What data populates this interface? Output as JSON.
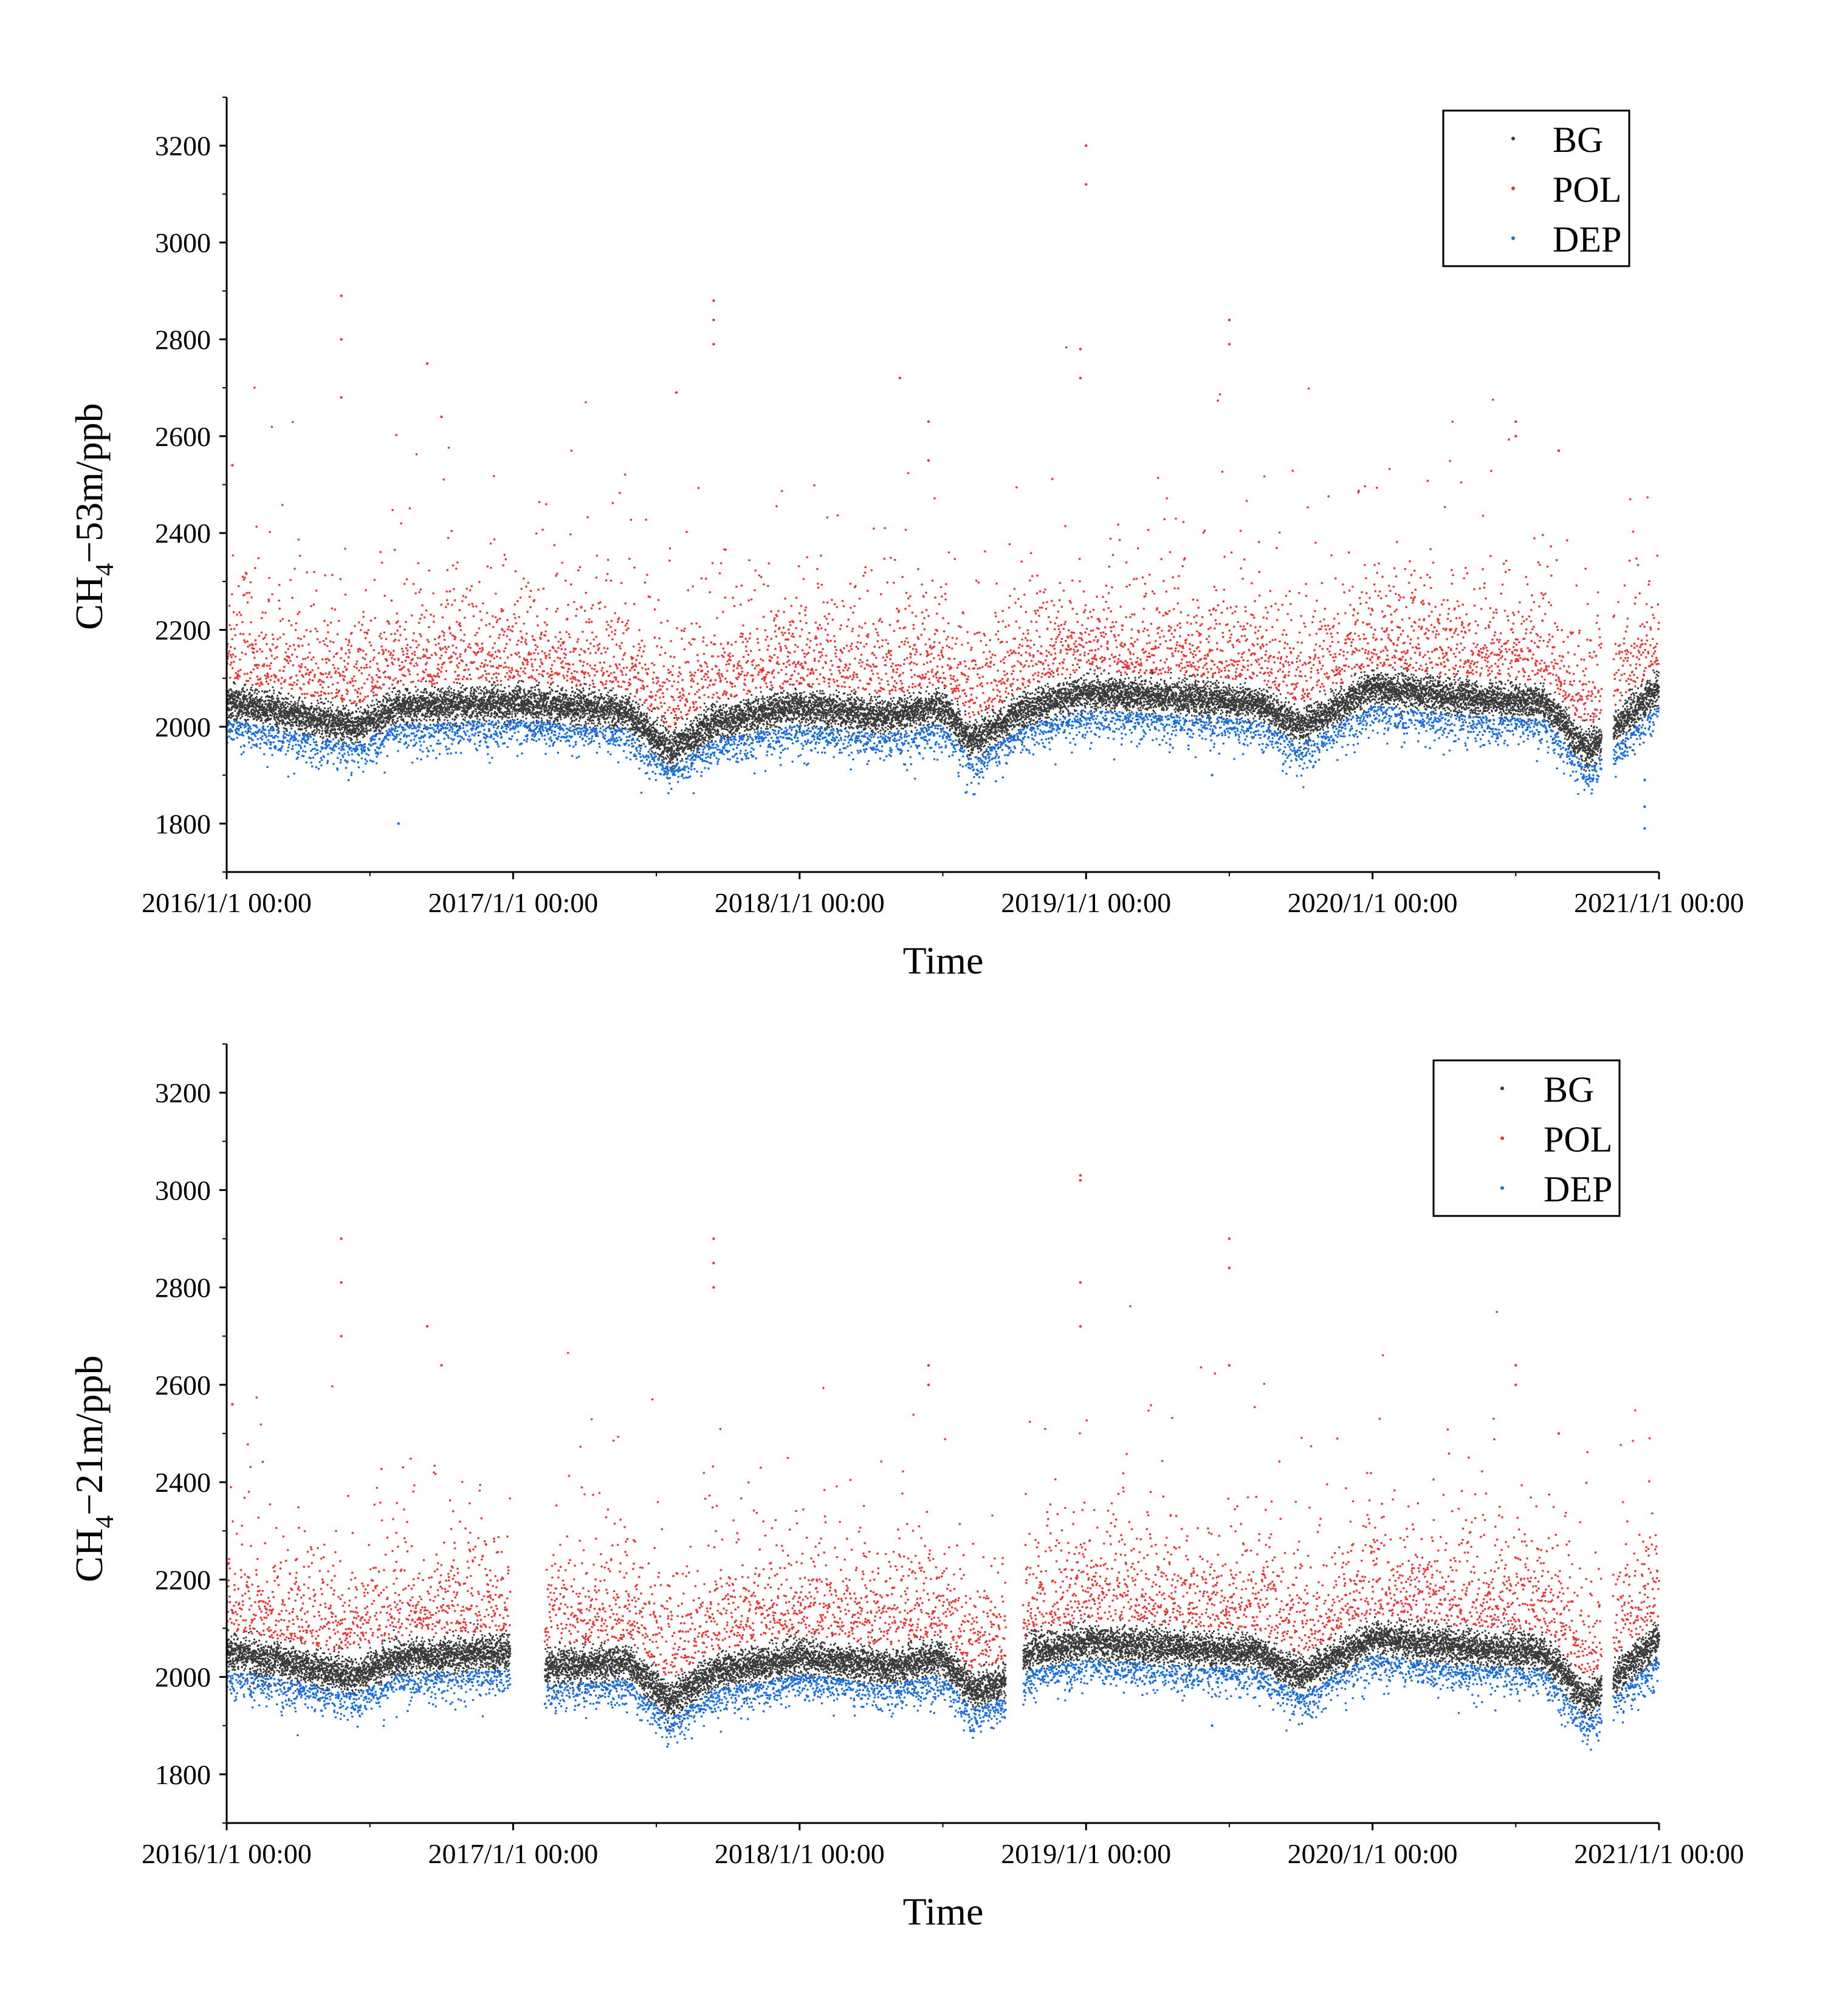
{
  "colors": {
    "BG": "#3a3a3a",
    "POL": "#ee3333",
    "DEP": "#1a6fe0",
    "axis": "#000000"
  },
  "chart_data": [
    {
      "type": "scatter",
      "title": "",
      "xlabel": "Time",
      "ylabel_main": "CH",
      "ylabel_sub": "4",
      "ylabel_rest": "−53m/ppb",
      "xlim": [
        2016.0,
        2021.0
      ],
      "ylim": [
        1700,
        3300
      ],
      "xticks": [
        2016,
        2017,
        2018,
        2019,
        2020,
        2021
      ],
      "xtick_labels": [
        "2016/1/1 00:00",
        "2017/1/1 00:00",
        "2018/1/1 00:00",
        "2019/1/1 00:00",
        "2020/1/1 00:00",
        "2021/1/1 00:00"
      ],
      "yticks": [
        1800,
        2000,
        2200,
        2400,
        2600,
        2800,
        3000,
        3200
      ],
      "ytick_labels": [
        "1800",
        "2000",
        "2200",
        "2400",
        "2600",
        "2800",
        "3000",
        "3200"
      ],
      "legend": [
        "BG",
        "POL",
        "DEP"
      ],
      "legend_position": "top-right",
      "series_summary": {
        "BG_baseline_points": [
          [
            2016.0,
            2050
          ],
          [
            2016.2,
            2030
          ],
          [
            2016.45,
            2000
          ],
          [
            2016.6,
            2040
          ],
          [
            2017.0,
            2050
          ],
          [
            2017.4,
            2030
          ],
          [
            2017.55,
            1950
          ],
          [
            2017.7,
            2010
          ],
          [
            2018.0,
            2040
          ],
          [
            2018.3,
            2020
          ],
          [
            2018.5,
            2040
          ],
          [
            2018.6,
            1970
          ],
          [
            2018.8,
            2040
          ],
          [
            2019.0,
            2070
          ],
          [
            2019.3,
            2060
          ],
          [
            2019.6,
            2050
          ],
          [
            2019.75,
            2000
          ],
          [
            2020.0,
            2080
          ],
          [
            2020.3,
            2060
          ],
          [
            2020.6,
            2050
          ],
          [
            2020.75,
            1950
          ],
          [
            2020.85,
            2000
          ],
          [
            2021.0,
            2080
          ]
        ],
        "gaps": [
          [
            2020.8,
            2020.84
          ]
        ],
        "POL_peaks": [
          [
            2016.02,
            2540
          ],
          [
            2016.4,
            2890
          ],
          [
            2016.4,
            2800
          ],
          [
            2016.4,
            2680
          ],
          [
            2016.7,
            2750
          ],
          [
            2016.75,
            2640
          ],
          [
            2017.57,
            2690
          ],
          [
            2017.7,
            2880
          ],
          [
            2017.7,
            2840
          ],
          [
            2017.7,
            2790
          ],
          [
            2018.35,
            2720
          ],
          [
            2018.45,
            2630
          ],
          [
            2018.45,
            2550
          ],
          [
            2018.98,
            2780
          ],
          [
            2018.98,
            2720
          ],
          [
            2019.0,
            3200
          ],
          [
            2019.0,
            3120
          ],
          [
            2019.5,
            2840
          ],
          [
            2019.5,
            2790
          ],
          [
            2020.5,
            2630
          ],
          [
            2020.5,
            2600
          ],
          [
            2020.65,
            2570
          ]
        ],
        "DEP_outliers": [
          [
            2016.6,
            1800
          ],
          [
            2020.95,
            1890
          ],
          [
            2020.95,
            1835
          ],
          [
            2020.95,
            1790
          ],
          [
            2019.44,
            1900
          ]
        ]
      }
    },
    {
      "type": "scatter",
      "title": "",
      "xlabel": "Time",
      "ylabel_main": "CH",
      "ylabel_sub": "4",
      "ylabel_rest": "−21m/ppb",
      "xlim": [
        2016.0,
        2021.0
      ],
      "ylim": [
        1700,
        3300
      ],
      "xticks": [
        2016,
        2017,
        2018,
        2019,
        2020,
        2021
      ],
      "xtick_labels": [
        "2016/1/1 00:00",
        "2017/1/1 00:00",
        "2018/1/1 00:00",
        "2019/1/1 00:00",
        "2020/1/1 00:00",
        "2021/1/1 00:00"
      ],
      "yticks": [
        1800,
        2000,
        2200,
        2400,
        2600,
        2800,
        3000,
        3200
      ],
      "ytick_labels": [
        "1800",
        "2000",
        "2200",
        "2400",
        "2600",
        "2800",
        "3000",
        "3200"
      ],
      "legend": [
        "BG",
        "POL",
        "DEP"
      ],
      "legend_position": "top-right",
      "series_summary": {
        "BG_baseline_points": [
          [
            2016.0,
            2050
          ],
          [
            2016.2,
            2030
          ],
          [
            2016.45,
            2000
          ],
          [
            2016.6,
            2040
          ],
          [
            2016.99,
            2050
          ],
          [
            2017.11,
            2020
          ],
          [
            2017.4,
            2030
          ],
          [
            2017.55,
            1950
          ],
          [
            2017.7,
            2010
          ],
          [
            2018.0,
            2040
          ],
          [
            2018.3,
            2020
          ],
          [
            2018.5,
            2040
          ],
          [
            2018.6,
            1970
          ],
          [
            2018.72,
            1990
          ],
          [
            2018.8,
            2050
          ],
          [
            2019.0,
            2070
          ],
          [
            2019.3,
            2060
          ],
          [
            2019.6,
            2050
          ],
          [
            2019.75,
            2000
          ],
          [
            2020.0,
            2080
          ],
          [
            2020.3,
            2060
          ],
          [
            2020.6,
            2050
          ],
          [
            2020.75,
            1950
          ],
          [
            2020.85,
            2000
          ],
          [
            2021.0,
            2080
          ]
        ],
        "gaps": [
          [
            2016.99,
            2017.11
          ],
          [
            2018.72,
            2018.78
          ],
          [
            2020.8,
            2020.84
          ]
        ],
        "POL_peaks": [
          [
            2016.02,
            2560
          ],
          [
            2016.4,
            2900
          ],
          [
            2016.4,
            2810
          ],
          [
            2016.4,
            2700
          ],
          [
            2016.7,
            2720
          ],
          [
            2016.75,
            2640
          ],
          [
            2017.7,
            2900
          ],
          [
            2017.7,
            2850
          ],
          [
            2017.7,
            2800
          ],
          [
            2018.45,
            2640
          ],
          [
            2018.45,
            2600
          ],
          [
            2018.98,
            3030
          ],
          [
            2018.98,
            3020
          ],
          [
            2018.98,
            2810
          ],
          [
            2018.98,
            2720
          ],
          [
            2019.5,
            2900
          ],
          [
            2019.5,
            2840
          ],
          [
            2019.5,
            2640
          ],
          [
            2020.5,
            2640
          ],
          [
            2020.5,
            2600
          ],
          [
            2020.65,
            2500
          ]
        ],
        "DEP_outliers": [
          [
            2019.44,
            1900
          ],
          [
            2020.95,
            1960
          ]
        ]
      }
    }
  ]
}
